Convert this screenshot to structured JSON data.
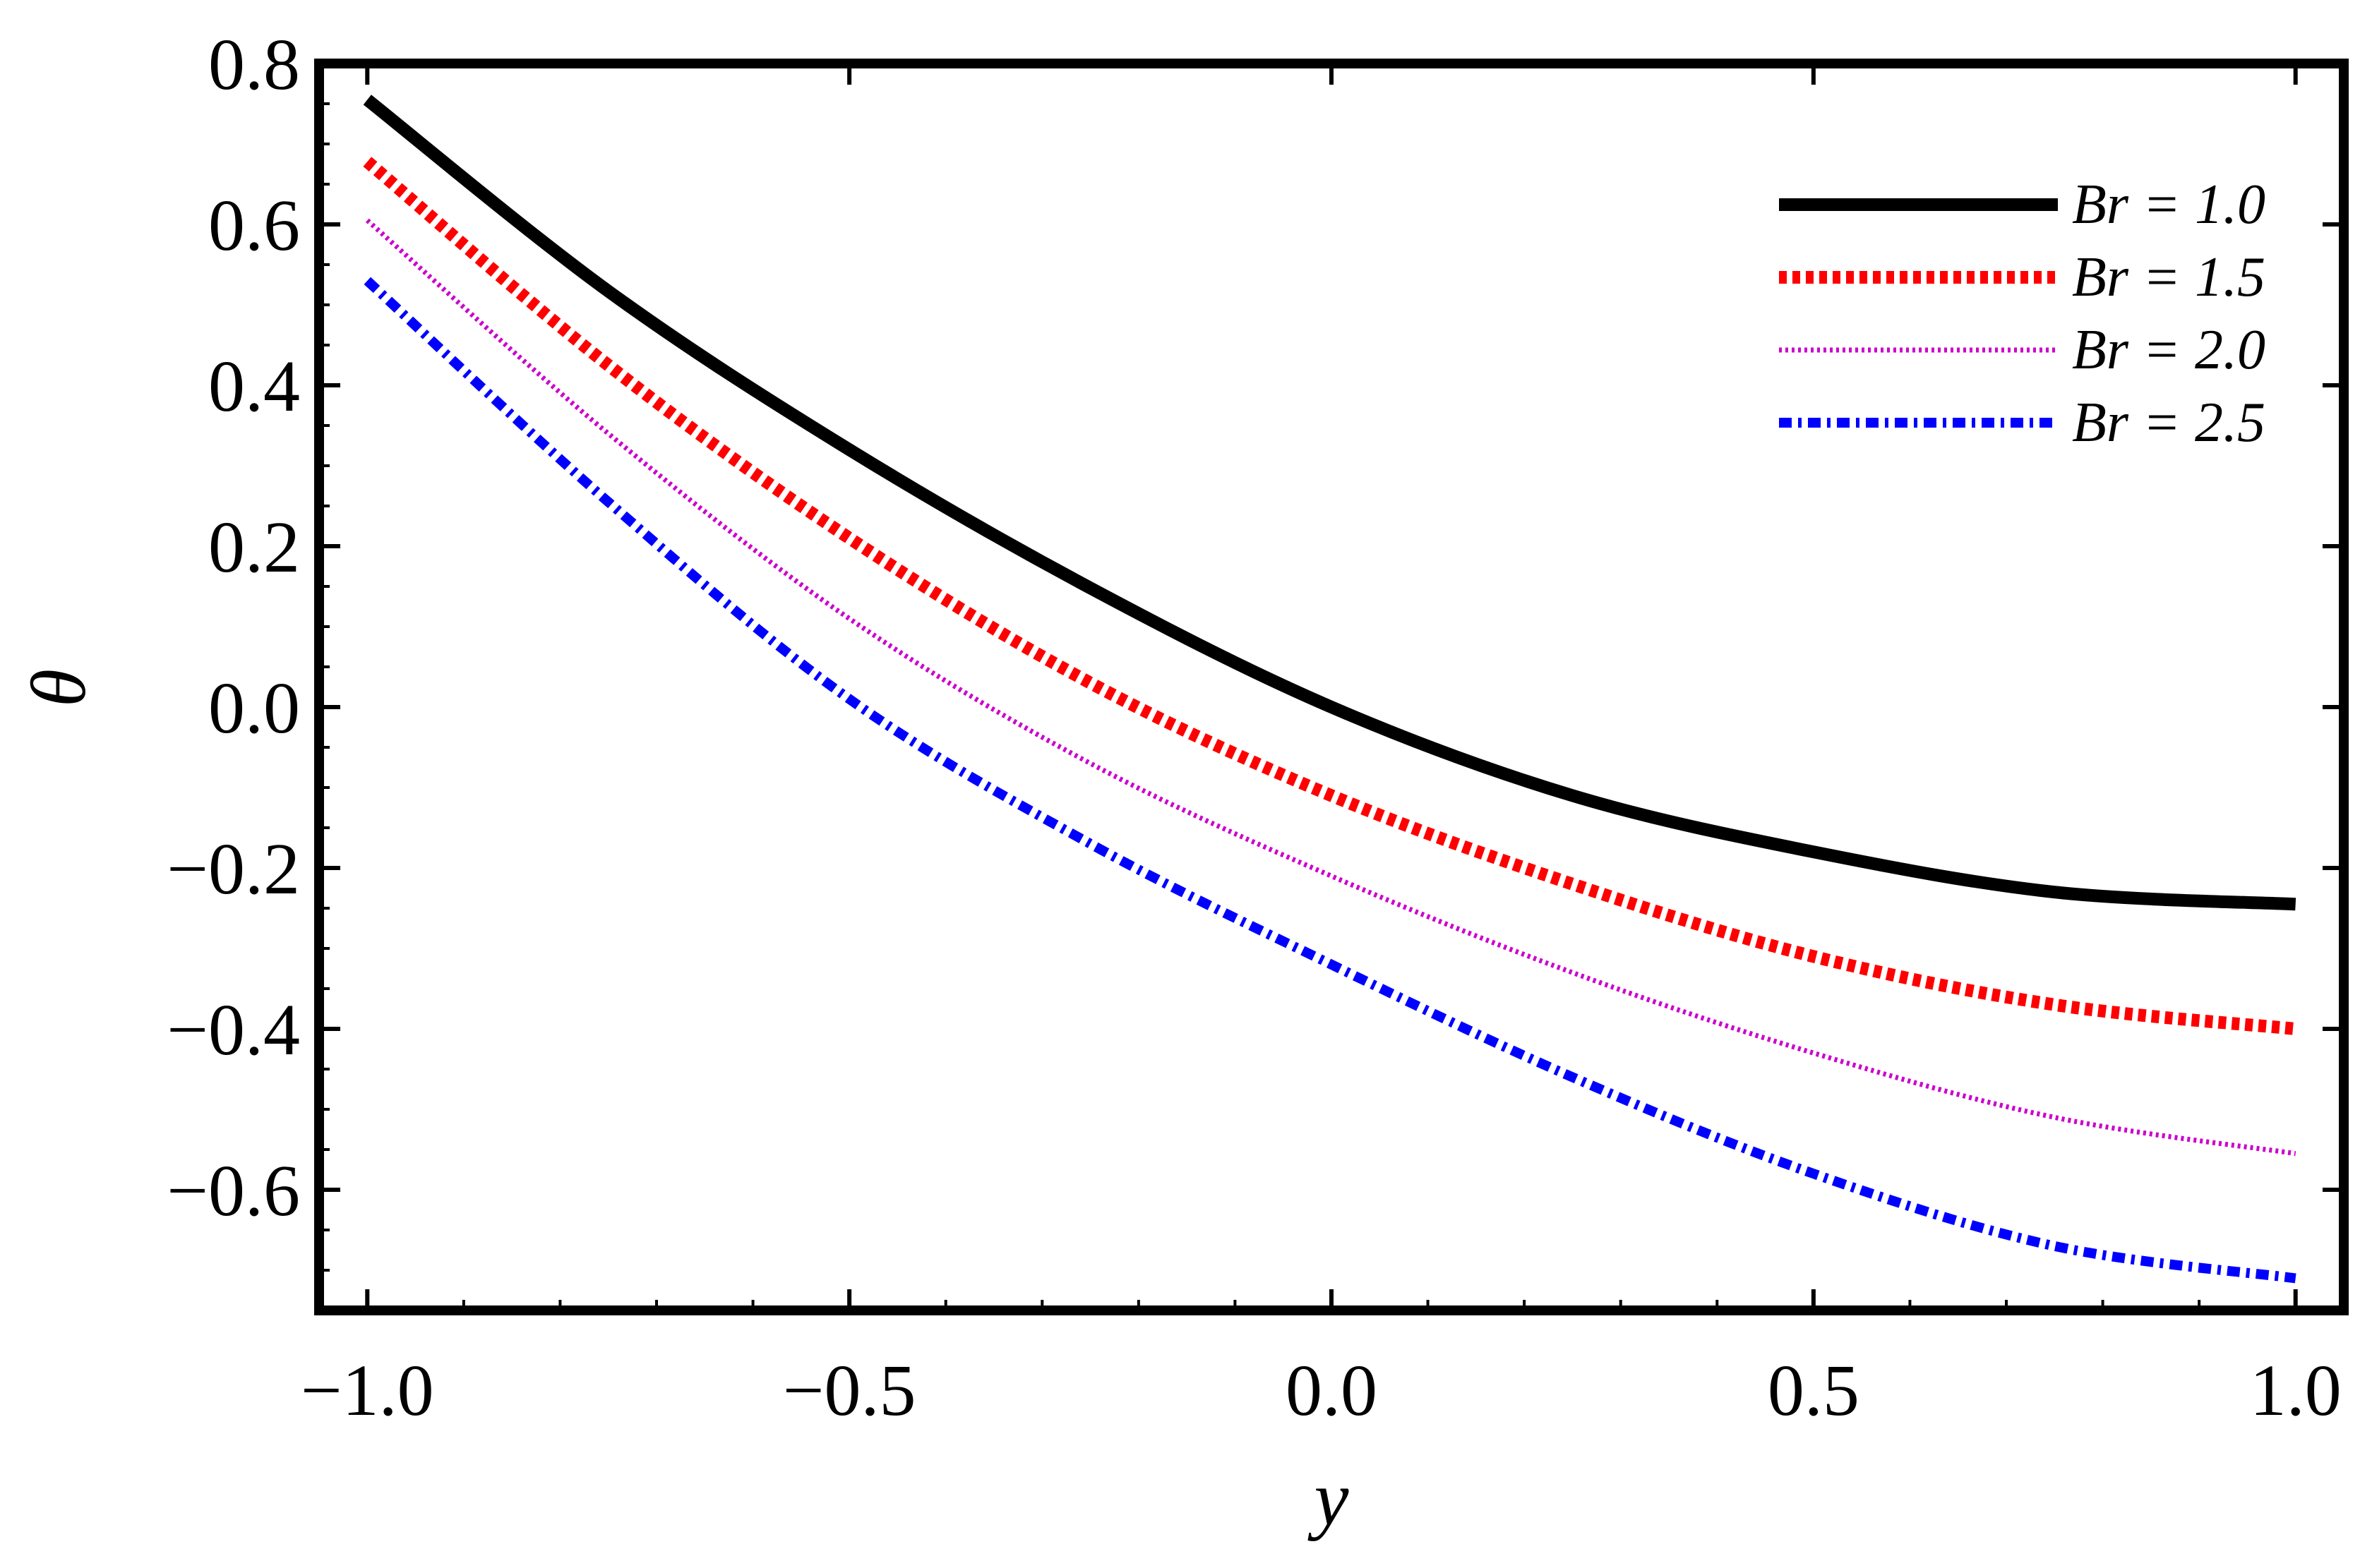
{
  "chart_data": {
    "type": "line",
    "title": "",
    "xlabel": "y",
    "ylabel": "θ",
    "xlim": [
      -1.05,
      1.05
    ],
    "ylim": [
      -0.75,
      0.8
    ],
    "xticks": [
      -1.0,
      -0.5,
      0.0,
      0.5,
      1.0
    ],
    "xtick_labels": [
      "−1.0",
      "−0.5",
      "0.0",
      "0.5",
      "1.0"
    ],
    "yticks": [
      -0.6,
      -0.4,
      -0.2,
      0.0,
      0.2,
      0.4,
      0.6,
      0.8
    ],
    "ytick_labels": [
      "−0.6",
      "−0.4",
      "−0.2",
      "0.0",
      "0.2",
      "0.4",
      "0.6",
      "0.8"
    ],
    "grid": false,
    "legend_position": "top-right",
    "series": [
      {
        "name": "Br = 1.0",
        "color": "#000000",
        "style": "solid",
        "x": [
          -1.0,
          -0.75,
          -0.5,
          -0.25,
          0.0,
          0.25,
          0.5,
          0.75,
          1.0
        ],
        "y": [
          0.755,
          0.517,
          0.32,
          0.148,
          0.0,
          -0.11,
          -0.18,
          -0.23,
          -0.245
        ]
      },
      {
        "name": "Br = 1.5",
        "color": "#ff0000",
        "style": "dotted-thick",
        "x": [
          -1.0,
          -0.75,
          -0.5,
          -0.25,
          0.0,
          0.25,
          0.5,
          0.75,
          1.0
        ],
        "y": [
          0.678,
          0.425,
          0.21,
          0.03,
          -0.11,
          -0.22,
          -0.31,
          -0.37,
          -0.4
        ]
      },
      {
        "name": "Br = 2.0",
        "color": "#cc00cc",
        "style": "dotted-thin",
        "x": [
          -1.0,
          -0.75,
          -0.5,
          -0.25,
          0.0,
          0.25,
          0.5,
          0.75,
          1.0
        ],
        "y": [
          0.605,
          0.34,
          0.11,
          -0.07,
          -0.21,
          -0.33,
          -0.43,
          -0.51,
          -0.555
        ]
      },
      {
        "name": "Br = 2.5",
        "color": "#0000ff",
        "style": "dash-dot",
        "x": [
          -1.0,
          -0.75,
          -0.5,
          -0.25,
          0.0,
          0.25,
          0.5,
          0.75,
          1.0
        ],
        "y": [
          0.53,
          0.255,
          0.01,
          -0.17,
          -0.32,
          -0.46,
          -0.58,
          -0.67,
          -0.71
        ]
      }
    ]
  }
}
